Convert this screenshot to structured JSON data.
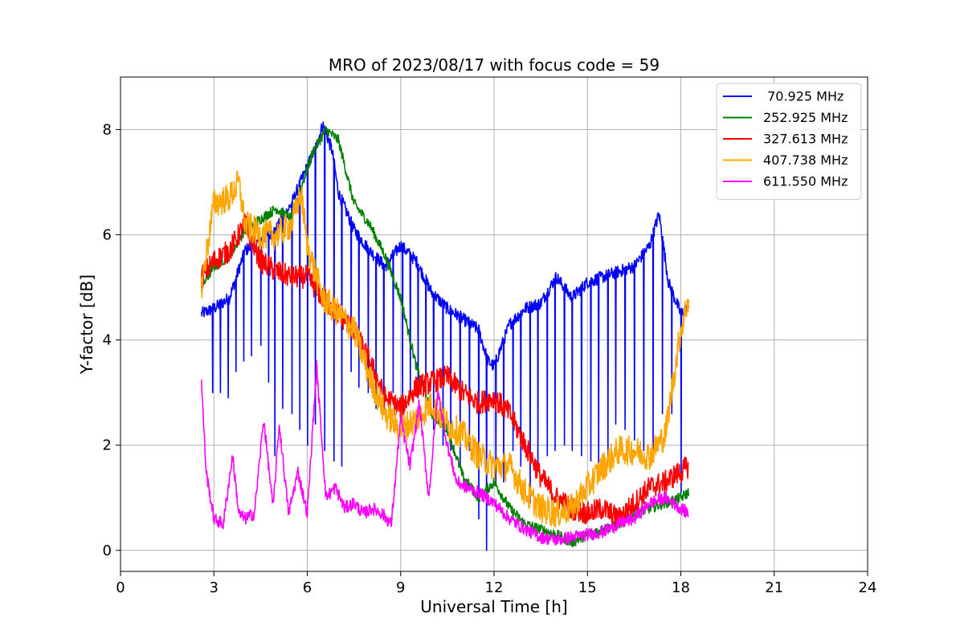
{
  "chart_data": {
    "type": "line",
    "title": "MRO of 2023/08/17 with focus code = 59",
    "xlabel": "Universal Time [h]",
    "ylabel": "Y-factor [dB]",
    "xlim": [
      0,
      24
    ],
    "ylim": [
      -0.4,
      9.0
    ],
    "xticks": [
      0,
      3,
      6,
      9,
      12,
      15,
      18,
      21,
      24
    ],
    "yticks": [
      0,
      2,
      4,
      6,
      8
    ],
    "grid": true,
    "legend_position": "top-right",
    "series": [
      {
        "name": " 70.925 MHz",
        "color": "#0000ff",
        "x": [
          2.6,
          3.0,
          3.5,
          4.0,
          4.5,
          5.0,
          5.5,
          6.0,
          6.3,
          6.5,
          6.8,
          7.0,
          7.5,
          8.0,
          8.5,
          9.0,
          9.5,
          10.0,
          10.5,
          11.0,
          11.5,
          11.8,
          12.0,
          12.5,
          13.0,
          13.5,
          14.0,
          14.5,
          15.0,
          15.5,
          16.0,
          16.5,
          17.0,
          17.3,
          17.6,
          18.0,
          18.25
        ],
        "y": [
          4.5,
          4.6,
          4.8,
          5.7,
          5.9,
          6.1,
          6.6,
          7.3,
          7.7,
          8.1,
          7.6,
          6.8,
          6.1,
          5.7,
          5.4,
          5.8,
          5.5,
          4.9,
          4.6,
          4.4,
          4.2,
          3.6,
          3.5,
          4.3,
          4.6,
          4.7,
          5.2,
          4.8,
          5.1,
          5.2,
          5.3,
          5.4,
          5.8,
          6.4,
          5.1,
          4.5,
          4.6
        ],
        "dips": [
          [
            2.95,
            3.0
          ],
          [
            3.2,
            3.0
          ],
          [
            3.45,
            2.9
          ],
          [
            3.7,
            3.4
          ],
          [
            3.95,
            3.6
          ],
          [
            4.2,
            3.7
          ],
          [
            4.5,
            3.9
          ],
          [
            4.75,
            3.2
          ],
          [
            4.95,
            1.8
          ],
          [
            5.2,
            2.7
          ],
          [
            5.5,
            2.6
          ],
          [
            5.75,
            2.3
          ],
          [
            6.0,
            2.0
          ],
          [
            6.25,
            2.4
          ],
          [
            6.55,
            1.9
          ],
          [
            6.85,
            1.7
          ],
          [
            7.1,
            1.6
          ],
          [
            7.4,
            3.4
          ],
          [
            7.65,
            3.1
          ],
          [
            7.95,
            3.0
          ],
          [
            8.2,
            2.7
          ],
          [
            8.45,
            2.6
          ],
          [
            8.75,
            3.0
          ],
          [
            9.05,
            2.6
          ],
          [
            9.3,
            2.9
          ],
          [
            9.55,
            2.9
          ],
          [
            9.8,
            2.6
          ],
          [
            10.05,
            2.3
          ],
          [
            10.35,
            2.0
          ],
          [
            10.6,
            1.9
          ],
          [
            10.9,
            1.6
          ],
          [
            11.2,
            1.9
          ],
          [
            11.5,
            0.6
          ],
          [
            11.75,
            0.0
          ],
          [
            12.05,
            1.3
          ],
          [
            12.3,
            1.3
          ],
          [
            12.6,
            1.9
          ],
          [
            12.85,
            1.6
          ],
          [
            13.15,
            0.9
          ],
          [
            13.4,
            1.6
          ],
          [
            13.7,
            1.8
          ],
          [
            13.95,
            1.9
          ],
          [
            14.25,
            2.0
          ],
          [
            14.5,
            1.9
          ],
          [
            14.8,
            1.8
          ],
          [
            15.1,
            1.7
          ],
          [
            15.35,
            1.5
          ],
          [
            15.65,
            1.8
          ],
          [
            15.9,
            2.4
          ],
          [
            16.2,
            2.3
          ],
          [
            16.5,
            2.1
          ],
          [
            16.8,
            1.9
          ],
          [
            17.1,
            1.9
          ],
          [
            17.4,
            2.6
          ],
          [
            17.7,
            2.6
          ],
          [
            18.0,
            1.1
          ]
        ]
      },
      {
        "name": "252.925 MHz",
        "color": "#008000",
        "x": [
          2.6,
          3.0,
          3.5,
          4.0,
          4.5,
          5.0,
          5.5,
          5.8,
          6.2,
          6.6,
          7.0,
          7.5,
          8.0,
          8.5,
          9.0,
          9.5,
          10.0,
          10.5,
          11.0,
          11.5,
          12.0,
          12.5,
          13.0,
          13.5,
          14.0,
          14.5,
          15.0,
          15.5,
          16.0,
          16.5,
          17.0,
          17.5,
          18.0,
          18.25
        ],
        "y": [
          5.0,
          5.4,
          5.6,
          6.1,
          6.3,
          6.5,
          6.3,
          6.9,
          7.6,
          8.0,
          7.8,
          6.6,
          6.2,
          5.6,
          4.8,
          3.5,
          2.6,
          2.3,
          1.4,
          1.0,
          1.3,
          0.8,
          0.5,
          0.4,
          0.3,
          0.15,
          0.3,
          0.4,
          0.5,
          0.7,
          0.8,
          0.9,
          1.0,
          1.1
        ]
      },
      {
        "name": "327.613 MHz",
        "color": "#ff0000",
        "x": [
          2.6,
          3.0,
          3.5,
          4.0,
          4.5,
          5.0,
          5.5,
          6.0,
          6.5,
          7.0,
          7.5,
          8.0,
          8.5,
          9.0,
          9.5,
          10.0,
          10.5,
          11.0,
          11.5,
          12.0,
          12.5,
          13.0,
          13.5,
          14.0,
          14.5,
          15.0,
          15.5,
          16.0,
          16.5,
          17.0,
          17.5,
          18.0,
          18.25
        ],
        "y": [
          5.2,
          5.5,
          5.7,
          6.2,
          5.5,
          5.3,
          5.2,
          5.2,
          4.8,
          4.5,
          4.2,
          3.6,
          2.9,
          2.7,
          3.1,
          3.2,
          3.3,
          3.0,
          2.8,
          2.9,
          2.6,
          2.0,
          1.4,
          1.0,
          0.8,
          0.7,
          0.8,
          0.6,
          0.9,
          1.2,
          1.3,
          1.5,
          1.6
        ]
      },
      {
        "name": "407.738 MHz",
        "color": "#ffa500",
        "x": [
          2.6,
          3.0,
          3.5,
          3.8,
          4.0,
          4.5,
          5.0,
          5.5,
          5.8,
          6.0,
          6.5,
          7.0,
          7.5,
          8.0,
          8.5,
          9.0,
          9.5,
          10.0,
          10.5,
          11.0,
          11.5,
          12.0,
          12.5,
          13.0,
          13.5,
          14.0,
          14.5,
          15.0,
          15.5,
          16.0,
          16.5,
          17.0,
          17.5,
          18.0,
          18.25
        ],
        "y": [
          5.0,
          6.6,
          6.7,
          7.0,
          6.2,
          6.0,
          6.0,
          6.2,
          6.8,
          5.8,
          4.8,
          4.5,
          4.2,
          3.3,
          2.6,
          2.3,
          2.5,
          2.8,
          2.4,
          2.2,
          1.8,
          1.6,
          1.6,
          1.1,
          0.8,
          0.7,
          0.8,
          1.2,
          1.6,
          1.9,
          1.9,
          1.8,
          2.2,
          4.2,
          4.8
        ]
      },
      {
        "name": "611.550 MHz",
        "color": "#ff00ff",
        "x": [
          2.6,
          2.75,
          3.0,
          3.3,
          3.6,
          3.8,
          4.0,
          4.3,
          4.6,
          4.9,
          5.1,
          5.4,
          5.7,
          6.0,
          6.3,
          6.6,
          6.9,
          7.2,
          7.5,
          7.8,
          8.1,
          8.4,
          8.7,
          9.0,
          9.3,
          9.6,
          9.9,
          10.2,
          10.5,
          10.8,
          11.1,
          11.5,
          12.0,
          12.5,
          13.0,
          13.5,
          14.0,
          14.5,
          15.0,
          15.5,
          16.0,
          16.5,
          17.0,
          17.5,
          18.0,
          18.25
        ],
        "y": [
          3.2,
          1.5,
          0.6,
          0.5,
          1.8,
          0.7,
          0.6,
          0.7,
          2.5,
          0.8,
          2.4,
          0.7,
          1.5,
          0.7,
          3.5,
          1.0,
          1.2,
          0.8,
          0.9,
          0.7,
          0.8,
          0.7,
          0.5,
          2.5,
          1.6,
          2.8,
          1.0,
          3.0,
          2.0,
          1.3,
          1.2,
          1.1,
          0.9,
          0.6,
          0.4,
          0.25,
          0.2,
          0.25,
          0.3,
          0.35,
          0.5,
          0.6,
          0.9,
          1.0,
          0.8,
          0.7
        ]
      }
    ]
  }
}
